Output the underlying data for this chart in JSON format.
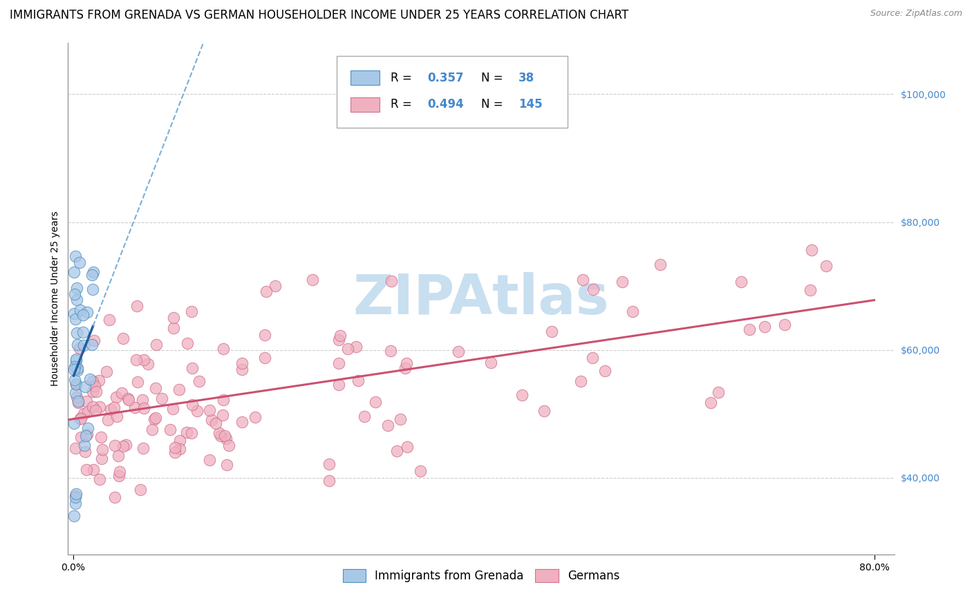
{
  "title": "IMMIGRANTS FROM GRENADA VS GERMAN HOUSEHOLDER INCOME UNDER 25 YEARS CORRELATION CHART",
  "source": "Source: ZipAtlas.com",
  "ylabel": "Householder Income Under 25 years",
  "color_blue_fill": "#a8c8e8",
  "color_blue_edge": "#5090c0",
  "color_blue_line": "#2060a0",
  "color_blue_dash": "#7ab0d8",
  "color_pink_fill": "#f0b0c0",
  "color_pink_edge": "#d07090",
  "color_pink_line": "#cc5070",
  "color_grid": "#cccccc",
  "color_ytick": "#4488cc",
  "watermark_color": "#c8dff0",
  "title_fontsize": 12,
  "axis_label_fontsize": 10,
  "tick_fontsize": 10,
  "legend_fontsize": 12,
  "source_fontsize": 9,
  "xlim": [
    -0.005,
    0.82
  ],
  "ylim": [
    28000,
    108000
  ],
  "yticks": [
    40000,
    60000,
    80000,
    100000
  ],
  "xticks": [
    0.0,
    0.8
  ],
  "xtick_labels": [
    "0.0%",
    "80.0%"
  ],
  "ytick_labels": [
    "$40,000",
    "$60,000",
    "$80,000",
    "$100,000"
  ],
  "seed_grenada": 7,
  "seed_german": 42
}
